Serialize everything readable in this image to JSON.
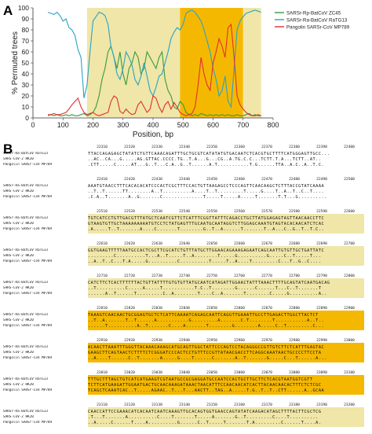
{
  "panel_a_label": "A",
  "panel_b_label": "B",
  "chart_data": {
    "type": "line",
    "xlabel": "Position, bp",
    "ylabel": "% Permuted trees",
    "xlim": [
      0,
      800
    ],
    "ylim": [
      0,
      100
    ],
    "xticks": [
      0,
      100,
      200,
      300,
      400,
      500,
      600,
      700,
      800
    ],
    "yticks": [
      0,
      10,
      20,
      30,
      40,
      50,
      60,
      70,
      80,
      90,
      100
    ],
    "legend_position": "top-right",
    "shaded_regions": [
      {
        "x0": 180,
        "x1": 490,
        "color": "#efe6a8"
      },
      {
        "x0": 490,
        "x1": 700,
        "color": "#f5b800"
      },
      {
        "x0": 700,
        "x1": 760,
        "color": "#efe6a8"
      }
    ],
    "series": [
      {
        "name": "SARSr-Rp-BatCoV ZC45",
        "color": "#3a9a3a",
        "x": [
          50,
          60,
          70,
          80,
          90,
          100,
          110,
          120,
          130,
          140,
          150,
          160,
          170,
          180,
          190,
          200,
          210,
          220,
          230,
          240,
          250,
          260,
          270,
          280,
          290,
          300,
          310,
          320,
          330,
          340,
          350,
          360,
          370,
          380,
          390,
          400,
          410,
          420,
          430,
          440,
          450,
          460,
          470,
          480,
          490,
          500,
          510,
          520,
          530,
          540,
          550,
          560,
          570,
          580,
          590,
          600,
          610,
          620,
          630,
          640,
          650,
          660,
          670,
          680,
          690,
          700,
          710,
          720,
          730,
          740,
          750,
          760
        ],
        "y": [
          2,
          3,
          2,
          3,
          2,
          2,
          3,
          2,
          3,
          2,
          2,
          3,
          4,
          2,
          3,
          5,
          10,
          20,
          35,
          45,
          60,
          65,
          55,
          45,
          60,
          40,
          30,
          45,
          50,
          60,
          55,
          40,
          45,
          60,
          55,
          50,
          45,
          55,
          60,
          35,
          25,
          20,
          10,
          8,
          15,
          12,
          5,
          3,
          2,
          3,
          2,
          4,
          3,
          2,
          3,
          2,
          3,
          2,
          3,
          2,
          3,
          2,
          2,
          3,
          2,
          2,
          3,
          4,
          2,
          3,
          2,
          2
        ]
      },
      {
        "name": "SARSr-Ra-BatCoV RaTG13",
        "color": "#2aa3c4",
        "x": [
          50,
          60,
          70,
          80,
          90,
          100,
          110,
          120,
          130,
          140,
          150,
          160,
          170,
          180,
          190,
          200,
          210,
          220,
          230,
          240,
          250,
          260,
          270,
          280,
          290,
          300,
          310,
          320,
          330,
          340,
          350,
          360,
          370,
          380,
          390,
          400,
          410,
          420,
          430,
          440,
          450,
          460,
          470,
          480,
          490,
          500,
          510,
          520,
          530,
          540,
          550,
          560,
          570,
          580,
          590,
          600,
          610,
          620,
          630,
          640,
          650,
          660,
          670,
          680,
          690,
          700,
          710,
          720,
          730,
          740,
          750,
          760
        ],
        "y": [
          96,
          95,
          94,
          96,
          93,
          88,
          90,
          82,
          80,
          75,
          62,
          55,
          18,
          30,
          60,
          88,
          92,
          96,
          95,
          93,
          85,
          65,
          55,
          40,
          35,
          45,
          60,
          55,
          48,
          35,
          30,
          38,
          50,
          38,
          25,
          20,
          28,
          38,
          40,
          50,
          60,
          72,
          78,
          82,
          80,
          85,
          95,
          97,
          98,
          96,
          92,
          88,
          80,
          70,
          60,
          45,
          35,
          20,
          25,
          38,
          15,
          10,
          45,
          80,
          88,
          92,
          95,
          96,
          97,
          98,
          97,
          96
        ]
      },
      {
        "name": "Pangolin SARSr-CoV MP789",
        "color": "#e03030",
        "x": [
          50,
          60,
          70,
          80,
          90,
          100,
          110,
          120,
          130,
          140,
          150,
          160,
          170,
          180,
          190,
          200,
          210,
          220,
          230,
          240,
          250,
          260,
          270,
          280,
          290,
          300,
          310,
          320,
          330,
          340,
          350,
          360,
          370,
          380,
          390,
          400,
          410,
          420,
          430,
          440,
          450,
          460,
          470,
          480,
          490,
          500,
          510,
          520,
          530,
          540,
          550,
          560,
          570,
          580,
          590,
          600,
          610,
          620,
          630,
          640,
          650,
          660,
          670,
          680,
          690,
          700,
          710,
          720,
          730,
          740,
          750,
          760
        ],
        "y": [
          3,
          3,
          4,
          3,
          3,
          4,
          5,
          8,
          12,
          15,
          18,
          10,
          5,
          3,
          4,
          5,
          3,
          2,
          3,
          4,
          5,
          15,
          20,
          18,
          6,
          4,
          8,
          5,
          3,
          4,
          12,
          15,
          10,
          5,
          8,
          20,
          18,
          10,
          5,
          12,
          15,
          8,
          14,
          10,
          5,
          3,
          2,
          3,
          4,
          10,
          30,
          55,
          40,
          30,
          25,
          50,
          60,
          72,
          65,
          55,
          82,
          85,
          55,
          20,
          12,
          8,
          5,
          3,
          2,
          2,
          3,
          2
        ]
      }
    ]
  },
  "alignment": {
    "names": [
      "SARSr-Ra-BatCoV RaTG13",
      "SARS-CoV-2 HK20",
      "Pangolin SARSr-CoV MP789"
    ],
    "blocks": [
      {
        "ticks": [
          "22310",
          "22320",
          "22330",
          "22340",
          "22350",
          "22360",
          "22370",
          "22380",
          "22390",
          "22400"
        ],
        "rows": [
          "TTACCAGAGAGCTATATCTGTTCAAACAGATTTGCTGCGTCATATATGTGACAATCTCACGTGCTTTTCATGGGAGTTGCC...",
          "..AC..CA...G.....AG.GTTAC.CCCC.TG..T.A...G...CG..A.TG.C.C...TCTT.T.A...TCTT..AT..",
          ".CTT.....C.....AT...G..T...C.A..G..T......A.T...........T.G......TTA..A.C..A..T.C."
        ]
      },
      {
        "ticks": [
          "22410",
          "22420",
          "22430",
          "22440",
          "22450",
          "22460",
          "22470",
          "22480",
          "22490",
          "22500"
        ],
        "rows": [
          "AAATGTAACCTTTCACACACATCCCACTCGCTTTCCACTGTTAAGAGCCTCCCAGTTCAACAAGCTCTTTACCGTATCAAAA",
          "..T..T......TT........A..T..........A....T..T.........T.....G....T..A..T..C..T....",
          ".C.A..T.......A..G.......C..............T.....T.....A.....T.......T.T...G.........."
        ]
      },
      {
        "ticks": [
          "22510",
          "22520",
          "22530",
          "22540",
          "22550",
          "22560",
          "22570",
          "22580",
          "22590",
          "22600"
        ],
        "rows": [
          "TGTCATCCTGTTGACGTTTATGCTCAATCGTTCTCATTTCGGTTATTTCAGACCTGCTTATGGAGAGTAGTTAACAACCTTC",
          "GTAAGTGTTGCTAAAAAAAAATGTCCTCTATGAGTTTGCAATGCAATAGGTCTTGGAGCAAATGTAGTACACAACATCTCAC",
          ".A.....T..T.......A....C.......T........G..T..A......T.......T..A...C..G..T..T.C.."
        ]
      },
      {
        "ticks": [
          "22610",
          "22620",
          "22630",
          "22640",
          "22650",
          "22660",
          "22670",
          "22680",
          "22690",
          "22700"
        ],
        "rows": [
          "GGTGAAGTTTTTAATGCCACTCGCTTCGCATCTGTTTATGCTTGGAACAGAAAGAGAATCAGCAATTGTGTTGCTGATTATC",
          ".........C..........T...A..T.....T..A........T.....G..........G.....C..T.....T...",
          "..A..T..C...T.A.....G..........C..........T.....T..A....T.........C...T..G..C...."
        ]
      },
      {
        "ticks": [
          "22710",
          "22720",
          "22730",
          "22740",
          "22750",
          "22760",
          "22770",
          "22780",
          "22790",
          "22800"
        ],
        "rows": [
          "CATCTTCTCACTTTTTTACTGTTATTTTGTGTGTTATGCAATCATAGATTGGAACTATTTAAACTTTTGCAGTATCAATGACAG",
          "..T..........C.....A.....T...........T.C..T........G......C......T...C..T.......T",
          "......A..T......T.........C..A........T....C..A.......T........C.....G..........A.."
        ]
      },
      {
        "ticks": [
          "22810",
          "22820",
          "22830",
          "22840",
          "22850",
          "22860",
          "22870",
          "22880",
          "22890",
          "22900"
        ],
        "rows": [
          "TAAAGTCAACAACTGCGGAGTGCTCTCATTCAAAATCAGAGCAATTCAGGTTGAAATTGCCTTGAGACTTGGCTTACTCT",
          "..T..A.......T..T......A...........G.........A.......C.T........T...........A..T..",
          "......T..........A..T.......C....A.......T........G........A.....C..T.........C..."
        ]
      },
      {
        "ticks": [
          "22910",
          "22920",
          "22930",
          "22940",
          "22950",
          "22960",
          "22970",
          "22980",
          "22990",
          "23000"
        ],
        "rows": [
          "ACAACTTAAATTTGGGTTACAAACAAAGCATGCAGTTGGCTATTCCCAGTCCTACAGGGCCGTTGTCTTCTCATTTGAGTAC",
          "GAAGCTTCAGTAACTCTTTTCTCGGGATCCCACTCCTGTTTCCGTTATAACGACCTTCAGGCAAATAACTGCCCCTTCCTA",
          "..A....T......C..T.......A.....G....T......C.......A..T.......G.....C...T......A..."
        ]
      },
      {
        "ticks": [
          "23010",
          "23020",
          "23030",
          "23040",
          "23050",
          "23060",
          "23070",
          "23080",
          "23090",
          "23100"
        ],
        "rows": [
          "TTTGCTTTAGCTGTCATCATGAAGTCGTAATGCCGCGAGGATGCCAATCCACTGCTTGCTTCTCACGTAATGGTCGTT",
          "TCTTCATGAAGATTGGAATGACTGCAACAAAGATAAACTAACATTTCCAACAACATCACTTACAACAACACTTTCTCTCGC",
          "TCAGCTCAAATCAC..T.....AGAAC..T...T...AACTT..TAG..A.....T.G..T..T..CTT......A..GCAA"
        ]
      },
      {
        "ticks": [
          "23110",
          "23120",
          "23130",
          "23140",
          "23150",
          "23160",
          "23170",
          "23180",
          "23190",
          "23200"
        ],
        "rows": [
          "CAACCATTCCGAAACATCACAATCAATCAAAGTTGCACAGTGGTGAACCAGTATATCAAGACATAGCTTTTACTTCGCTCG",
          ".T...T.......A..........C....T.......T.....A.......G..T.........C....T..........",
          "..A.....C......T....A..........G......C..T.....T.......T.A.........C......T....A."
        ]
      }
    ]
  }
}
